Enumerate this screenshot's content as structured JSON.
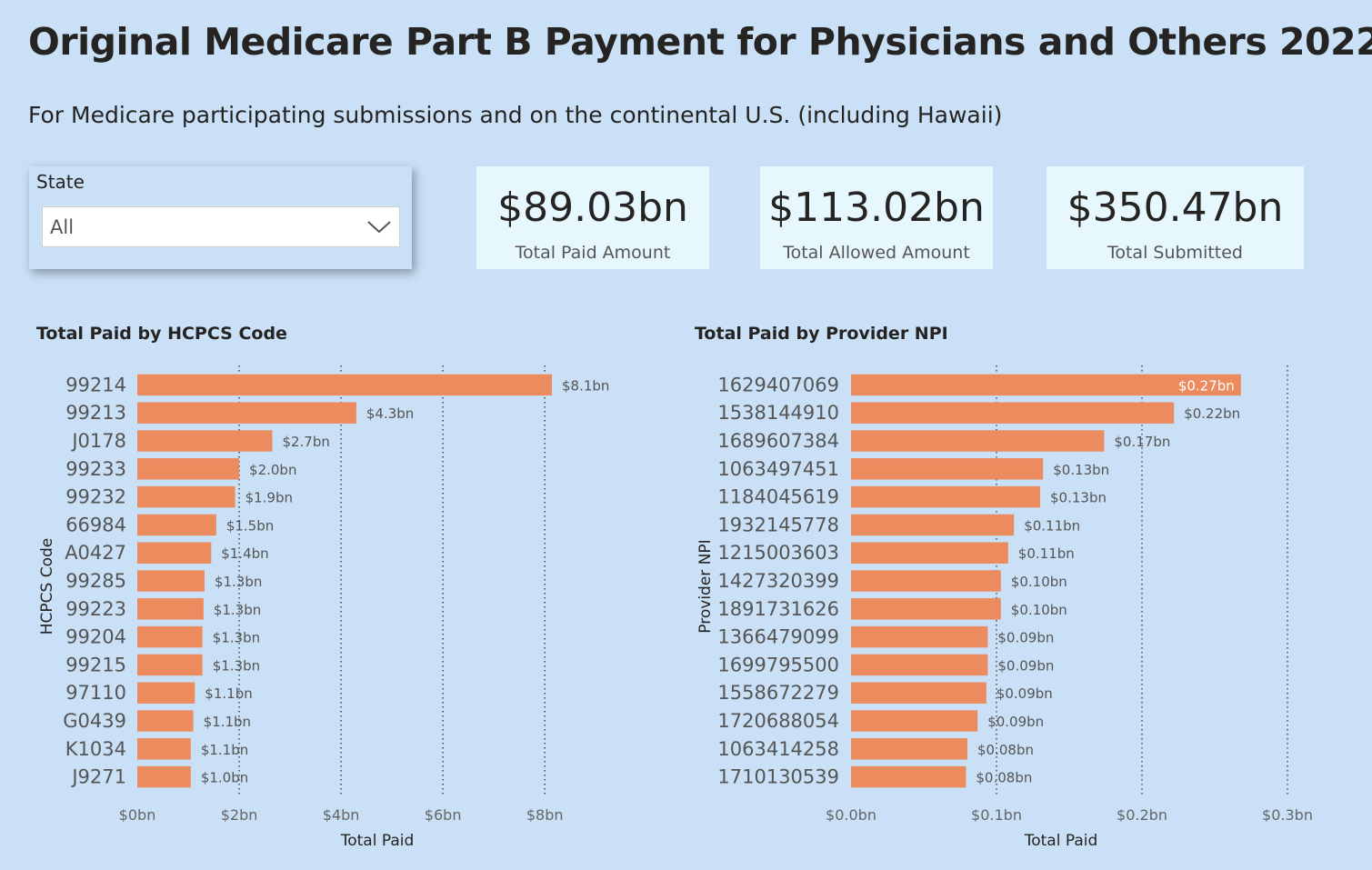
{
  "header": {
    "title": "Original Medicare Part B Payment for Physicians and Others 2022",
    "subtitle": "For Medicare participating submissions and on the continental U.S. (including Hawaii)"
  },
  "slicer": {
    "label": "State",
    "value": "All"
  },
  "cards": [
    {
      "value": "$89.03bn",
      "label": "Total Paid Amount"
    },
    {
      "value": "$113.02bn",
      "label": "Total Allowed Amount"
    },
    {
      "value": "$350.47bn",
      "label": "Total Submitted"
    }
  ],
  "colors": {
    "bar": "#ec8b5d",
    "background": "#c9e0f6",
    "card": "#e6f8fd"
  },
  "chart_data": [
    {
      "type": "bar",
      "orientation": "horizontal",
      "title": "Total Paid by HCPCS Code",
      "xlabel": "Total Paid",
      "ylabel": "HCPCS Code",
      "xlim": [
        0,
        8.8
      ],
      "xticks": [
        0,
        2,
        4,
        6,
        8
      ],
      "xtick_labels": [
        "$0bn",
        "$2bn",
        "$4bn",
        "$6bn",
        "$8bn"
      ],
      "grid": true,
      "categories": [
        "99214",
        "99213",
        "J0178",
        "99233",
        "99232",
        "66984",
        "A0427",
        "99285",
        "99223",
        "99204",
        "99215",
        "97110",
        "G0439",
        "K1034",
        "J9271"
      ],
      "values": [
        8.14,
        4.3,
        2.65,
        2.0,
        1.92,
        1.55,
        1.45,
        1.32,
        1.3,
        1.28,
        1.28,
        1.13,
        1.1,
        1.05,
        1.05
      ],
      "data_labels": [
        "$8.1bn",
        "$4.3bn",
        "$2.7bn",
        "$2.0bn",
        "$1.9bn",
        "$1.5bn",
        "$1.4bn",
        "$1.3bn",
        "$1.3bn",
        "$1.3bn",
        "$1.3bn",
        "$1.1bn",
        "$1.1bn",
        "$1.1bn",
        "$1.0bn"
      ]
    },
    {
      "type": "bar",
      "orientation": "horizontal",
      "title": "Total Paid by Provider NPI",
      "xlabel": "Total Paid",
      "ylabel": "Provider NPI",
      "xlim": [
        0,
        0.3
      ],
      "xticks": [
        0,
        0.1,
        0.2,
        0.3
      ],
      "xtick_labels": [
        "$0.0bn",
        "$0.1bn",
        "$0.2bn",
        "$0.3bn"
      ],
      "grid": true,
      "categories": [
        "1629407069",
        "1538144910",
        "1689607384",
        "1063497451",
        "1184045619",
        "1932145778",
        "1215003603",
        "1427320399",
        "1891731626",
        "1366479099",
        "1699795500",
        "1558672279",
        "1720688054",
        "1063414258",
        "1710130539"
      ],
      "values": [
        0.268,
        0.222,
        0.174,
        0.132,
        0.13,
        0.112,
        0.108,
        0.103,
        0.103,
        0.094,
        0.094,
        0.093,
        0.087,
        0.08,
        0.079
      ],
      "data_labels": [
        "$0.27bn",
        "$0.22bn",
        "$0.17bn",
        "$0.13bn",
        "$0.13bn",
        "$0.11bn",
        "$0.11bn",
        "$0.10bn",
        "$0.10bn",
        "$0.09bn",
        "$0.09bn",
        "$0.09bn",
        "$0.09bn",
        "$0.08bn",
        "$0.08bn"
      ]
    }
  ]
}
